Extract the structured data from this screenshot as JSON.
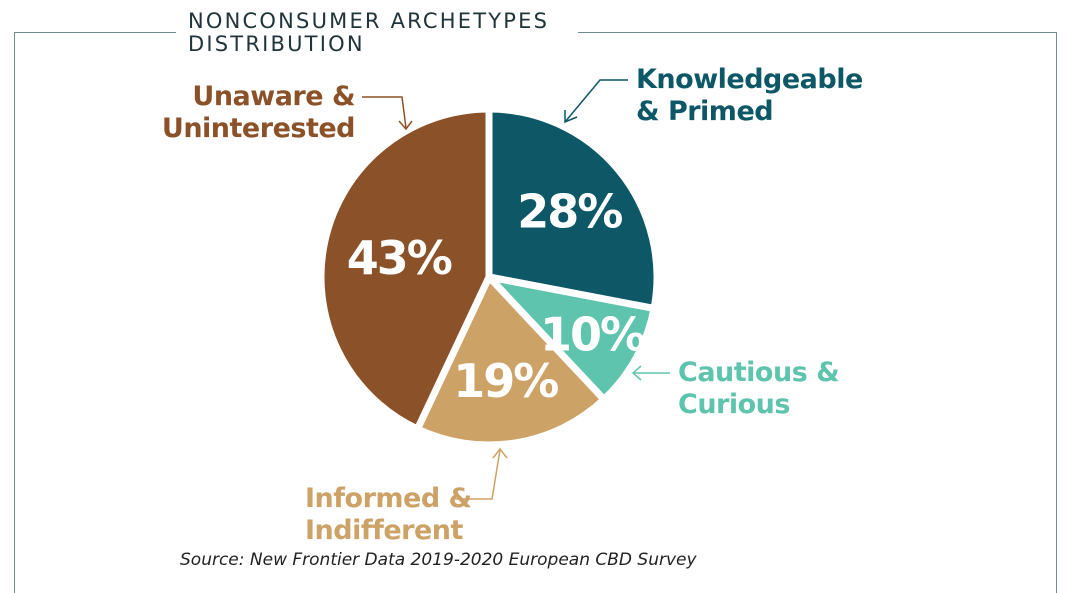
{
  "chart_data": {
    "type": "pie",
    "title": "NONCONSUMER ARCHETYPES DISTRIBUTION",
    "slices": [
      {
        "name": "Knowledgeable & Primed",
        "value": 28,
        "label": "28%",
        "color": "#0d5766"
      },
      {
        "name": "Cautious & Curious",
        "value": 10,
        "label": "10%",
        "color": "#5ec4ad"
      },
      {
        "name": "Informed & Indifferent",
        "value": 19,
        "label": "19%",
        "color": "#cda266"
      },
      {
        "name": "Unaware & Uninterested",
        "value": 43,
        "label": "43%",
        "color": "#8b5229"
      }
    ],
    "source": "Source: New Frontier Data 2019-2020 European CBD Survey"
  },
  "labels": {
    "kp": [
      "Knowledgeable",
      "& Primed"
    ],
    "cc": [
      "Cautious &",
      "Curious"
    ],
    "ii": [
      "Informed &",
      "Indifferent"
    ],
    "uu": [
      "Unaware &",
      "Uninterested"
    ]
  }
}
